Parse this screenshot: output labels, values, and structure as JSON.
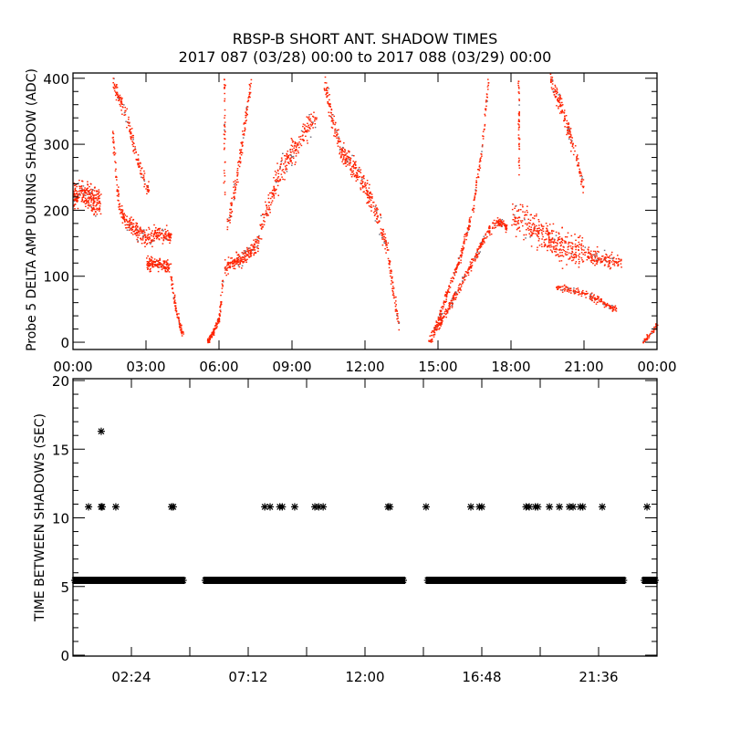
{
  "title_line1": "RBSP-B SHORT ANT. SHADOW TIMES",
  "title_line2": "2017 087 (03/28) 00:00 to 2017 088 (03/29) 00:00",
  "colors": {
    "points": "#ff2200",
    "axes": "#000000",
    "markers": "#000000"
  },
  "chart_data": [
    {
      "type": "scatter",
      "name": "probe5-delta-amp",
      "xlabel": "",
      "ylabel": "Probe 5 DELTA AMP DURING SHADOW (ADC)",
      "x_unit": "hours since 2017-03-28 00:00",
      "xlim": [
        0,
        24
      ],
      "ylim": [
        -11,
        408
      ],
      "xticks": [
        0,
        3,
        6,
        9,
        12,
        15,
        18,
        21,
        24
      ],
      "xtick_labels": [
        "00:00",
        "03:00",
        "06:00",
        "09:00",
        "12:00",
        "15:00",
        "18:00",
        "21:00",
        "00:00"
      ],
      "yticks": [
        0,
        100,
        200,
        300,
        400
      ],
      "ytick_labels": [
        "0",
        "100",
        "200",
        "300",
        "400"
      ],
      "y_minor_step": 20,
      "branches": [
        {
          "points": [
            [
              0.0,
              225
            ],
            [
              0.5,
              225
            ],
            [
              1.1,
              210
            ]
          ],
          "spread": 22,
          "n": 260
        },
        {
          "points": [
            [
              1.6,
              320
            ],
            [
              1.9,
              195
            ],
            [
              2.5,
              170
            ],
            [
              3.0,
              160
            ],
            [
              3.5,
              165
            ],
            [
              4.0,
              160
            ]
          ],
          "spread": 14,
          "n": 320
        },
        {
          "points": [
            [
              3.0,
              120
            ],
            [
              3.5,
              118
            ],
            [
              4.0,
              115
            ]
          ],
          "spread": 10,
          "n": 140
        },
        {
          "points": [
            [
              1.6,
              400
            ],
            [
              2.2,
              340
            ],
            [
              2.7,
              265
            ],
            [
              3.1,
              225
            ]
          ],
          "spread": 14,
          "n": 160
        },
        {
          "points": [
            [
              4.0,
              100
            ],
            [
              4.2,
              50
            ],
            [
              4.5,
              10
            ]
          ],
          "spread": 6,
          "n": 80
        },
        {
          "points": [
            [
              5.5,
              2
            ],
            [
              5.8,
              18
            ],
            [
              6.0,
              40
            ],
            [
              6.15,
              100
            ]
          ],
          "spread": 5,
          "n": 140
        },
        {
          "points": [
            [
              6.2,
              115
            ],
            [
              7.0,
              130
            ],
            [
              7.6,
              150
            ]
          ],
          "spread": 12,
          "n": 200
        },
        {
          "points": [
            [
              7.6,
              160
            ],
            [
              8.0,
              210
            ],
            [
              8.5,
              260
            ],
            [
              9.0,
              290
            ],
            [
              9.5,
              320
            ],
            [
              10.0,
              345
            ]
          ],
          "spread": 22,
          "n": 260
        },
        {
          "points": [
            [
              6.3,
              170
            ],
            [
              6.8,
              270
            ],
            [
              7.3,
              400
            ]
          ],
          "spread": 14,
          "n": 130
        },
        {
          "points": [
            [
              6.2,
              220
            ],
            [
              6.2,
              400
            ]
          ],
          "spread": 4,
          "n": 40
        },
        {
          "points": [
            [
              10.3,
              400
            ],
            [
              10.7,
              330
            ],
            [
              11.0,
              290
            ],
            [
              11.5,
              265
            ],
            [
              12.0,
              235
            ],
            [
              12.5,
              190
            ],
            [
              12.9,
              140
            ],
            [
              13.2,
              60
            ],
            [
              13.4,
              20
            ]
          ],
          "spread": 16,
          "n": 420
        },
        {
          "points": [
            [
              14.6,
              2
            ],
            [
              15.2,
              40
            ],
            [
              15.8,
              80
            ],
            [
              16.3,
              115
            ],
            [
              16.9,
              160
            ],
            [
              17.4,
              185
            ],
            [
              17.8,
              175
            ]
          ],
          "spread": 8,
          "n": 360
        },
        {
          "points": [
            [
              14.8,
              15
            ],
            [
              15.3,
              70
            ],
            [
              15.9,
              130
            ],
            [
              16.4,
              200
            ],
            [
              16.8,
              300
            ],
            [
              17.05,
              400
            ]
          ],
          "spread": 8,
          "n": 260
        },
        {
          "points": [
            [
              18.0,
              190
            ],
            [
              19.0,
              170
            ],
            [
              20.0,
              145
            ],
            [
              21.0,
              135
            ]
          ],
          "spread": 25,
          "n": 360
        },
        {
          "points": [
            [
              18.3,
              250
            ],
            [
              18.3,
              400
            ]
          ],
          "spread": 4,
          "n": 45
        },
        {
          "points": [
            [
              19.6,
              400
            ],
            [
              20.2,
              340
            ],
            [
              20.6,
              290
            ],
            [
              21.0,
              230
            ]
          ],
          "spread": 14,
          "n": 170
        },
        {
          "points": [
            [
              21.0,
              135
            ],
            [
              22.0,
              125
            ],
            [
              22.5,
              120
            ]
          ],
          "spread": 12,
          "n": 140
        },
        {
          "points": [
            [
              19.8,
              85
            ],
            [
              21.0,
              75
            ],
            [
              22.3,
              50
            ]
          ],
          "spread": 6,
          "n": 180
        },
        {
          "points": [
            [
              23.4,
              0
            ],
            [
              24.0,
              28
            ]
          ],
          "spread": 5,
          "n": 50
        }
      ]
    },
    {
      "type": "scatter",
      "name": "time-between-shadows",
      "xlabel": "",
      "ylabel": "TIME BETWEEN SHADOWS (SEC)",
      "xlim": [
        0,
        24
      ],
      "ylim": [
        0,
        20
      ],
      "xticks": [
        2.4,
        7.2,
        12.0,
        16.8,
        21.6
      ],
      "xtick_labels": [
        "02:24",
        "07:12",
        "12:00",
        "16:48",
        "21:36"
      ],
      "x_minor_step": 2.4,
      "yticks": [
        0,
        5,
        10,
        15,
        20
      ],
      "ytick_labels": [
        "0",
        "5",
        "10",
        "15",
        "20"
      ],
      "y_minor_step": 1,
      "marker": "asterisk",
      "band_value": 5.45,
      "band_segments": [
        [
          0.0,
          4.6
        ],
        [
          5.36,
          13.65
        ],
        [
          14.5,
          22.7
        ],
        [
          23.4,
          24.0
        ]
      ],
      "outliers": [
        [
          0.64,
          10.8
        ],
        [
          1.16,
          10.8
        ],
        [
          1.2,
          10.8
        ],
        [
          1.16,
          16.3
        ],
        [
          1.76,
          10.8
        ],
        [
          4.05,
          10.8
        ],
        [
          4.12,
          10.8
        ],
        [
          7.88,
          10.8
        ],
        [
          8.1,
          10.8
        ],
        [
          8.5,
          10.8
        ],
        [
          8.6,
          10.8
        ],
        [
          9.11,
          10.8
        ],
        [
          9.94,
          10.8
        ],
        [
          10.1,
          10.8
        ],
        [
          10.28,
          10.8
        ],
        [
          12.95,
          10.8
        ],
        [
          13.02,
          10.8
        ],
        [
          14.51,
          10.8
        ],
        [
          16.35,
          10.8
        ],
        [
          16.7,
          10.8
        ],
        [
          16.8,
          10.8
        ],
        [
          18.62,
          10.8
        ],
        [
          18.75,
          10.8
        ],
        [
          19.0,
          10.8
        ],
        [
          19.1,
          10.8
        ],
        [
          19.58,
          10.8
        ],
        [
          19.99,
          10.8
        ],
        [
          20.4,
          10.8
        ],
        [
          20.55,
          10.8
        ],
        [
          20.85,
          10.8
        ],
        [
          20.95,
          10.8
        ],
        [
          21.75,
          10.8
        ],
        [
          23.59,
          10.8
        ]
      ]
    }
  ]
}
